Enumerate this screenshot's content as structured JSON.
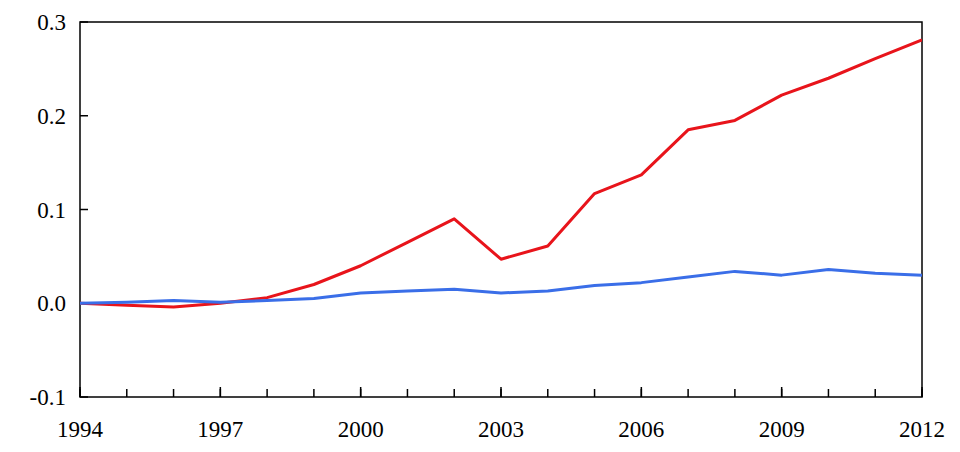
{
  "chart_data": {
    "type": "line",
    "x": [
      1994,
      1995,
      1996,
      1997,
      1998,
      1999,
      2000,
      2001,
      2002,
      2003,
      2004,
      2005,
      2006,
      2007,
      2008,
      2009,
      2010,
      2011,
      2012
    ],
    "series": [
      {
        "color": "#e8141b",
        "values": [
          0.0,
          -0.002,
          -0.004,
          0.0,
          0.006,
          0.02,
          0.04,
          0.065,
          0.09,
          0.047,
          0.061,
          0.117,
          0.137,
          0.185,
          0.195,
          0.222,
          0.24,
          0.261,
          0.281
        ]
      },
      {
        "color": "#3a6ee8",
        "values": [
          0.0,
          0.001,
          0.003,
          0.001,
          0.003,
          0.005,
          0.011,
          0.013,
          0.015,
          0.011,
          0.013,
          0.019,
          0.022,
          0.028,
          0.034,
          0.03,
          0.036,
          0.032,
          0.03
        ]
      }
    ],
    "xlim": [
      1994,
      2012
    ],
    "xticks": [
      1994,
      1997,
      2000,
      2003,
      2006,
      2009,
      2012
    ],
    "ylim": [
      -0.1,
      0.3
    ],
    "yticks": [
      -0.1,
      {
        "value": 0,
        "label": "0.0"
      },
      0.1,
      0.2,
      0.3
    ],
    "grid": false
  }
}
